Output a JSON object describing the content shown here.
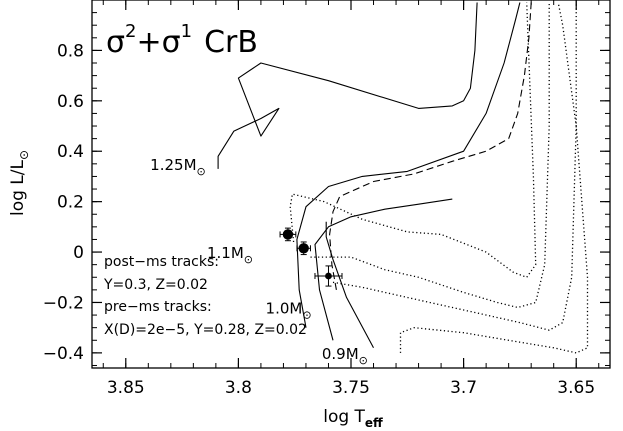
{
  "chart_data": {
    "type": "line",
    "title_parts": {
      "sigma": "σ",
      "exp2": "2",
      "plus": "+",
      "exp1": "1",
      "name": "CrB"
    },
    "xlabel_parts": {
      "main": "log T",
      "sub": "eff"
    },
    "ylabel_parts": {
      "main": "log L/L",
      "sun": "⊙"
    },
    "xlim": [
      3.865,
      3.635
    ],
    "ylim": [
      -0.46,
      1.0
    ],
    "x_scale": "linear, decreasing to the right",
    "grid": false,
    "xticks": [
      3.85,
      3.8,
      3.75,
      3.7,
      3.65
    ],
    "xtick_labels": [
      "3.85",
      "3.8",
      "3.75",
      "3.7",
      "3.65"
    ],
    "yticks": [
      -0.4,
      -0.2,
      0,
      0.2,
      0.4,
      0.6,
      0.8
    ],
    "ytick_labels": [
      "−0.4",
      "−0.2",
      "0",
      "0.2",
      "0.4",
      "0.6",
      "0.8"
    ],
    "annotations": [
      {
        "text": "post−ms tracks:"
      },
      {
        "text": "Y=0.3, Z=0.02"
      },
      {
        "text": "pre−ms tracks:"
      },
      {
        "text": "X(D)=2e−5, Y=0.28, Z=0.02"
      }
    ],
    "mass_labels": [
      {
        "mass": "1.25",
        "unit": "M",
        "sun": "⊙",
        "x": 3.8145,
        "y": 0.35
      },
      {
        "mass": "1.1",
        "unit": "M",
        "sun": "⊙",
        "x": 3.7935,
        "y": 0.0
      },
      {
        "mass": "1.0",
        "unit": "M",
        "sun": "⊙",
        "x": 3.7675,
        "y": -0.22
      },
      {
        "mass": "0.9",
        "unit": "M",
        "sun": "⊙",
        "x": 3.7425,
        "y": -0.4
      }
    ],
    "observations": [
      {
        "x": 3.778,
        "y": 0.07,
        "x_err": 0.0035,
        "y_err": 0.025,
        "size": "large"
      },
      {
        "x": 3.771,
        "y": 0.015,
        "x_err": 0.003,
        "y_err": 0.025,
        "size": "large"
      },
      {
        "x": 3.76,
        "y": -0.095,
        "x_err": 0.006,
        "y_err": 0.04,
        "size": "small"
      }
    ],
    "series": [
      {
        "style": "solid",
        "x": [
          3.809,
          3.809,
          3.802,
          3.79,
          3.782,
          3.79,
          3.8,
          3.79,
          3.76,
          3.72,
          3.705,
          3.7,
          3.697,
          3.695,
          3.694
        ],
        "y": [
          0.33,
          0.38,
          0.48,
          0.53,
          0.57,
          0.46,
          0.69,
          0.75,
          0.68,
          0.57,
          0.58,
          0.6,
          0.65,
          0.8,
          0.99
        ]
      },
      {
        "style": "solid",
        "x": [
          3.77,
          3.773,
          3.774,
          3.77,
          3.76,
          3.745,
          3.725,
          3.7,
          3.69,
          3.682,
          3.677,
          3.675
        ],
        "y": [
          -0.3,
          -0.15,
          0.05,
          0.18,
          0.26,
          0.3,
          0.32,
          0.4,
          0.55,
          0.75,
          0.92,
          0.99
        ]
      },
      {
        "style": "solid",
        "x": [
          3.758,
          3.764,
          3.766,
          3.76,
          3.75,
          3.735,
          3.72,
          3.705
        ],
        "y": [
          -0.35,
          -0.15,
          0.03,
          0.1,
          0.14,
          0.17,
          0.19,
          0.21
        ]
      },
      {
        "style": "solid",
        "x": [
          3.74,
          3.752,
          3.758,
          3.761,
          3.761
        ],
        "y": [
          -0.38,
          -0.18,
          -0.03,
          0.06,
          0.12
        ]
      },
      {
        "style": "dashed",
        "x": [
          3.7565,
          3.7585,
          3.7595,
          3.758,
          3.755,
          3.74,
          3.722,
          3.705,
          3.69,
          3.68,
          3.676,
          3.673,
          3.671,
          3.67
        ],
        "y": [
          -0.15,
          -0.05,
          0.07,
          0.16,
          0.22,
          0.28,
          0.31,
          0.36,
          0.4,
          0.45,
          0.55,
          0.7,
          0.85,
          0.99
        ]
      },
      {
        "style": "dotted",
        "x": [
          3.7755,
          3.777,
          3.776,
          3.762,
          3.745,
          3.725,
          3.71,
          3.69,
          3.678,
          3.672,
          3.668,
          3.669,
          3.672
        ],
        "y": [
          0.04,
          0.18,
          0.23,
          0.2,
          0.13,
          0.08,
          0.07,
          0.0,
          -0.08,
          -0.1,
          -0.05,
          0.3,
          0.99
        ]
      },
      {
        "style": "dotted",
        "x": [
          3.768,
          3.75,
          3.735,
          3.72,
          3.7,
          3.685,
          3.676,
          3.668,
          3.664,
          3.662,
          3.662
        ],
        "y": [
          -0.02,
          -0.02,
          -0.07,
          -0.1,
          -0.16,
          -0.2,
          -0.22,
          -0.2,
          -0.05,
          0.5,
          0.99
        ]
      },
      {
        "style": "dotted",
        "x": [
          3.758,
          3.745,
          3.73,
          3.715,
          3.695,
          3.675,
          3.662,
          3.656,
          3.652,
          3.65,
          3.65
        ],
        "y": [
          -0.12,
          -0.14,
          -0.17,
          -0.2,
          -0.24,
          -0.28,
          -0.31,
          -0.28,
          -0.1,
          0.5,
          0.99
        ]
      },
      {
        "style": "dotted",
        "x": [
          3.728,
          3.728,
          3.722,
          3.7,
          3.68,
          3.66,
          3.65,
          3.645,
          3.645,
          3.65,
          3.656,
          3.658
        ],
        "y": [
          -0.4,
          -0.32,
          -0.3,
          -0.32,
          -0.35,
          -0.38,
          -0.4,
          -0.38,
          -0.1,
          0.5,
          0.9,
          0.99
        ]
      }
    ]
  }
}
